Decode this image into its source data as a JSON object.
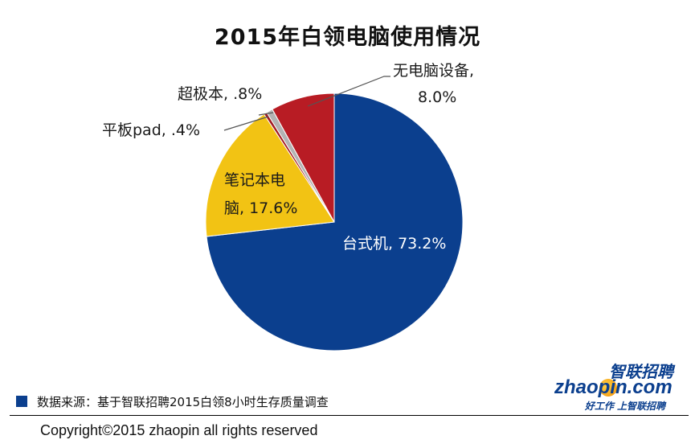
{
  "chart_data": {
    "type": "pie",
    "title": "2015年白领电脑使用情况",
    "slices": [
      {
        "label": "台式机",
        "value": 73.2,
        "display": "台式机, 73.2%",
        "color": "#0b3f8e"
      },
      {
        "label": "笔记本电脑",
        "value": 17.6,
        "display_line1": "笔记本电",
        "display_line2": "脑, 17.6%",
        "color": "#f2c314"
      },
      {
        "label": "平板pad",
        "value": 0.4,
        "display": "平板pad, .4%",
        "color": "#a31a21"
      },
      {
        "label": "超极本",
        "value": 0.8,
        "display": "超极本, .8%",
        "color": "#b3b3b3"
      },
      {
        "label": "无电脑设备",
        "value": 8.0,
        "display_line1": "无电脑设备,",
        "display_line2": "8.0%",
        "color": "#b81c24"
      }
    ]
  },
  "footer": {
    "source": "数据来源：基于智联招聘2015白领8小时生存质量调查",
    "copyright": "Copyright©2015 zhaopin all rights reserved"
  },
  "logo": {
    "cn_name": "智联招聘",
    "en_name": "zhaopin.com",
    "slogan": "好工作 上智联招聘"
  }
}
